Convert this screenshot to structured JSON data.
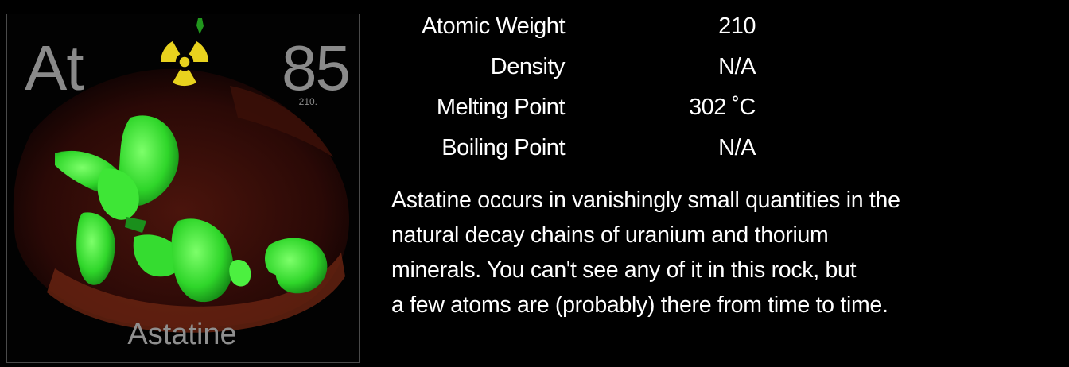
{
  "element": {
    "symbol": "At",
    "atomic_number": "85",
    "tile_weight": "210.",
    "name": "Astatine"
  },
  "icons": {
    "radiation": "radiation-warning-icon"
  },
  "colors": {
    "background": "#000000",
    "tile_text": "#8a8a8a",
    "radiation_yellow": "#e8d21e",
    "crystal_green": "#2ed82a",
    "rock_red": "#5a1a10"
  },
  "properties": [
    {
      "label": "Atomic Weight",
      "value": "210"
    },
    {
      "label": "Density",
      "value": "N/A"
    },
    {
      "label": "Melting Point",
      "value": "302 ˚C"
    },
    {
      "label": "Boiling Point",
      "value": "N/A"
    }
  ],
  "description": "Astatine occurs in vanishingly small quantities in the\nnatural decay chains of uranium and thorium\nminerals.  You can't see any of it in this rock, but\na few atoms are (probably) there from time to time."
}
